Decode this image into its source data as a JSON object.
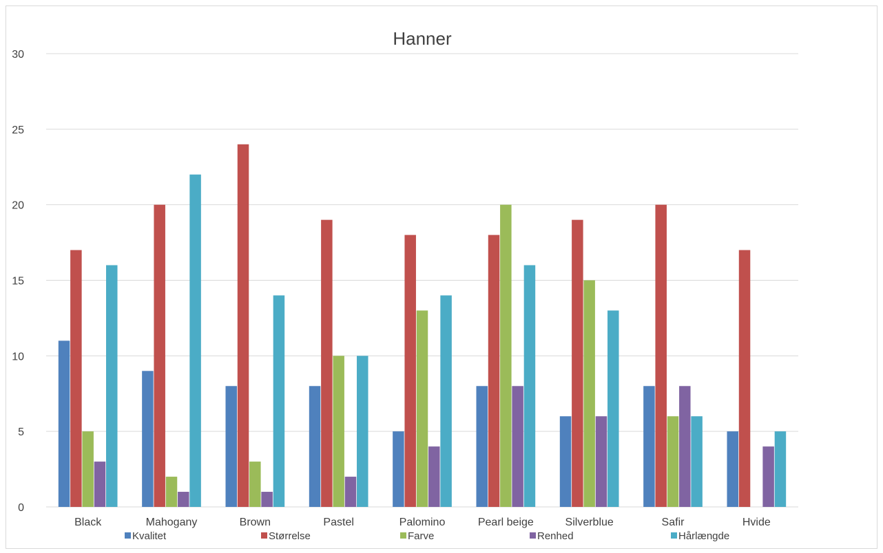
{
  "chart_data": {
    "type": "bar",
    "title": "Hanner",
    "xlabel": "",
    "ylabel": "",
    "ylim": [
      0,
      30
    ],
    "yticks": [
      0,
      5,
      10,
      15,
      20,
      25,
      30
    ],
    "grid": true,
    "legend_position": "bottom",
    "categories": [
      "Black",
      "Mahogany",
      "Brown",
      "Pastel",
      "Palomino",
      "Pearl beige",
      "Silverblue",
      "Safir",
      "Hvide"
    ],
    "series": [
      {
        "name": "Kvalitet",
        "color": "#4f81bd",
        "values": [
          11,
          9,
          8,
          8,
          5,
          8,
          6,
          8,
          5
        ]
      },
      {
        "name": "Størrelse",
        "color": "#c0504d",
        "values": [
          17,
          20,
          24,
          19,
          18,
          18,
          19,
          20,
          17
        ]
      },
      {
        "name": "Farve",
        "color": "#9bbb59",
        "values": [
          5,
          2,
          3,
          10,
          13,
          20,
          15,
          6,
          0
        ]
      },
      {
        "name": "Renhed",
        "color": "#8064a2",
        "values": [
          3,
          1,
          1,
          2,
          4,
          8,
          6,
          8,
          4
        ]
      },
      {
        "name": "Hårlængde",
        "color": "#4bacc6",
        "values": [
          16,
          22,
          14,
          10,
          14,
          16,
          13,
          6,
          5
        ]
      }
    ]
  }
}
